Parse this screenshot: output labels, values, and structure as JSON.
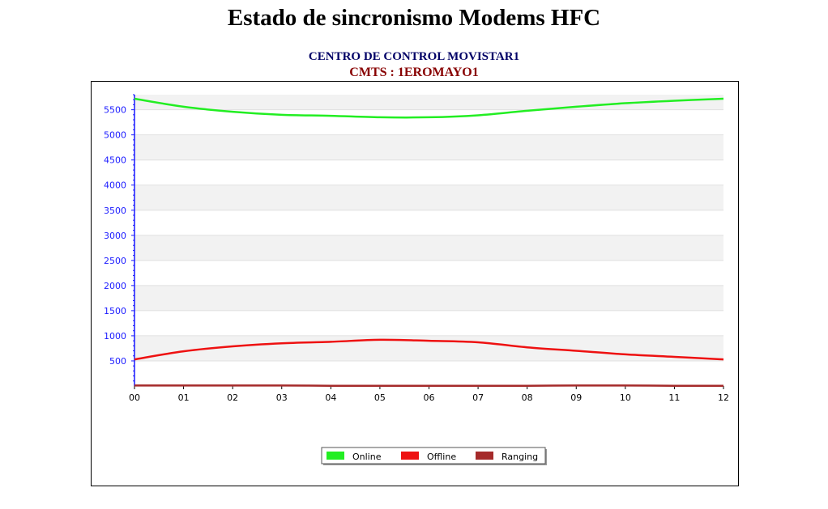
{
  "page": {
    "title": "Estado de sincronismo Modems HFC",
    "subtitle1": "CENTRO DE CONTROL MOVISTAR1",
    "subtitle2": "CMTS : 1EROMAYO1"
  },
  "chart_data": {
    "type": "line",
    "title": "",
    "xlabel": "",
    "ylabel": "",
    "x": [
      "00",
      "01",
      "02",
      "03",
      "04",
      "05",
      "06",
      "07",
      "08",
      "09",
      "10",
      "11",
      "12"
    ],
    "ylim": [
      0,
      5800
    ],
    "yticks": [
      500,
      1000,
      1500,
      2000,
      2500,
      3000,
      3500,
      4000,
      4500,
      5000,
      5500
    ],
    "grid": true,
    "legend": "bottom",
    "colors": {
      "axis": "#1a1aff",
      "band": "#f2f2f2"
    },
    "series": [
      {
        "name": "Online",
        "color": "#22ee22",
        "values": [
          5720,
          5560,
          5460,
          5400,
          5380,
          5350,
          5350,
          5390,
          5480,
          5560,
          5630,
          5680,
          5720
        ]
      },
      {
        "name": "Offline",
        "color": "#ee1111",
        "values": [
          530,
          690,
          790,
          850,
          880,
          920,
          900,
          870,
          770,
          700,
          630,
          580,
          530
        ]
      },
      {
        "name": "Ranging",
        "color": "#a52a2a",
        "values": [
          10,
          10,
          10,
          10,
          5,
          5,
          5,
          5,
          5,
          10,
          10,
          5,
          5
        ]
      }
    ]
  }
}
